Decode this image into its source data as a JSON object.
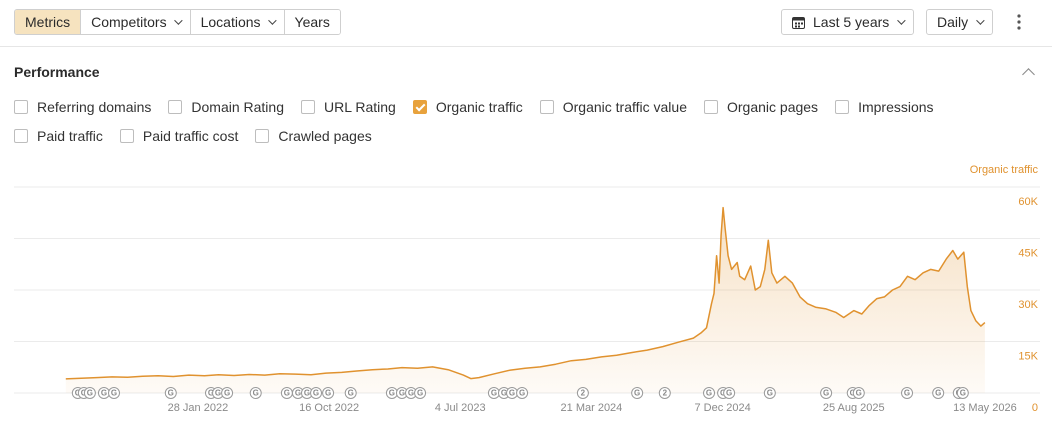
{
  "toolbar": {
    "tabs": [
      {
        "label": "Metrics",
        "selected": true,
        "dropdown": false
      },
      {
        "label": "Competitors",
        "selected": false,
        "dropdown": true
      },
      {
        "label": "Locations",
        "selected": false,
        "dropdown": true
      },
      {
        "label": "Years",
        "selected": false,
        "dropdown": false
      }
    ],
    "period": "Last 5 years",
    "interval": "Daily"
  },
  "section": {
    "title": "Performance",
    "metrics": [
      {
        "label": "Referring domains",
        "checked": false
      },
      {
        "label": "Domain Rating",
        "checked": false
      },
      {
        "label": "URL Rating",
        "checked": false
      },
      {
        "label": "Organic traffic",
        "checked": true
      },
      {
        "label": "Organic traffic value",
        "checked": false
      },
      {
        "label": "Organic pages",
        "checked": false
      },
      {
        "label": "Impressions",
        "checked": false
      },
      {
        "label": "Paid traffic",
        "checked": false
      },
      {
        "label": "Paid traffic cost",
        "checked": false
      },
      {
        "label": "Crawled pages",
        "checked": false
      }
    ]
  },
  "chart_data": {
    "type": "area",
    "y_label": "Organic traffic",
    "x": [
      "2021-05-10",
      "2021-06-10",
      "2021-07-10",
      "2021-08-10",
      "2021-09-10",
      "2021-10-10",
      "2021-11-10",
      "2021-12-10",
      "2022-01-10",
      "2022-02-10",
      "2022-03-10",
      "2022-04-10",
      "2022-05-10",
      "2022-06-10",
      "2022-07-10",
      "2022-08-10",
      "2022-09-10",
      "2022-10-10",
      "2022-11-10",
      "2022-12-10",
      "2023-01-10",
      "2023-02-10",
      "2023-03-10",
      "2023-04-10",
      "2023-05-10",
      "2023-06-10",
      "2023-07-10",
      "2023-07-25",
      "2023-08-10",
      "2023-09-10",
      "2023-10-10",
      "2023-11-10",
      "2023-12-10",
      "2024-01-10",
      "2024-02-10",
      "2024-03-10",
      "2024-04-10",
      "2024-05-10",
      "2024-06-10",
      "2024-07-10",
      "2024-08-10",
      "2024-09-10",
      "2024-10-10",
      "2024-10-25",
      "2024-11-05",
      "2024-11-15",
      "2024-11-20",
      "2024-11-25",
      "2024-11-30",
      "2024-12-04",
      "2024-12-08",
      "2024-12-12",
      "2024-12-18",
      "2024-12-25",
      "2025-01-05",
      "2025-01-10",
      "2025-01-20",
      "2025-02-01",
      "2025-02-10",
      "2025-02-20",
      "2025-03-01",
      "2025-03-08",
      "2025-03-15",
      "2025-03-25",
      "2025-04-10",
      "2025-04-25",
      "2025-05-10",
      "2025-05-25",
      "2025-06-10",
      "2025-07-01",
      "2025-07-20",
      "2025-08-05",
      "2025-08-25",
      "2025-09-10",
      "2025-09-25",
      "2025-10-10",
      "2025-10-25",
      "2025-11-10",
      "2025-11-25",
      "2025-12-10",
      "2025-12-25",
      "2026-01-10",
      "2026-01-25",
      "2026-02-10",
      "2026-02-25",
      "2026-03-10",
      "2026-03-20",
      "2026-04-01",
      "2026-04-08",
      "2026-04-15",
      "2026-04-25",
      "2026-05-05",
      "2026-05-13"
    ],
    "series": [
      {
        "name": "Organic traffic",
        "color": "#e0922f",
        "values": [
          4100,
          4300,
          4500,
          4700,
          4600,
          4900,
          5000,
          4800,
          5200,
          5000,
          5300,
          5100,
          5400,
          5200,
          5600,
          5500,
          5300,
          5800,
          6000,
          6400,
          6800,
          7000,
          7400,
          7200,
          7600,
          6800,
          5200,
          4200,
          4500,
          5600,
          6600,
          7200,
          7600,
          8400,
          9400,
          9800,
          10500,
          11000,
          11800,
          12500,
          13500,
          14800,
          16000,
          17500,
          19000,
          26000,
          29000,
          40000,
          32000,
          46000,
          54000,
          48000,
          40000,
          36000,
          38000,
          34000,
          33000,
          37000,
          30000,
          31000,
          36000,
          44500,
          35000,
          32000,
          34000,
          32000,
          28000,
          26000,
          25000,
          24500,
          23500,
          22000,
          24000,
          23000,
          25500,
          27500,
          28000,
          30000,
          31000,
          34000,
          33000,
          35000,
          36000,
          35500,
          39000,
          41500,
          39000,
          41000,
          31000,
          24000,
          21000,
          19500,
          20500
        ]
      }
    ],
    "xlim": [
      "2021-01-27",
      "2026-06-12"
    ],
    "xticks": [
      {
        "value": "2022-01-28",
        "label": "28 Jan 2022"
      },
      {
        "value": "2022-10-16",
        "label": "16 Oct 2022"
      },
      {
        "value": "2023-07-04",
        "label": "4 Jul 2023"
      },
      {
        "value": "2024-03-21",
        "label": "21 Mar 2024"
      },
      {
        "value": "2024-12-07",
        "label": "7 Dec 2024"
      },
      {
        "value": "2025-08-25",
        "label": "25 Aug 2025"
      },
      {
        "value": "2026-05-13",
        "label": "13 May 2026"
      }
    ],
    "ylim": [
      0,
      60000
    ],
    "yticks": [
      0,
      {
        "value": 15000,
        "label": "15K"
      },
      {
        "value": 30000,
        "label": "30K"
      },
      {
        "value": 45000,
        "label": "45K"
      },
      {
        "value": 60000,
        "label": "60K"
      }
    ],
    "grid": true,
    "annotations": [
      {
        "x": "2021-06-03",
        "label": "G"
      },
      {
        "x": "2021-06-15",
        "label": "G"
      },
      {
        "x": "2021-06-27",
        "label": "G"
      },
      {
        "x": "2021-07-25",
        "label": "G"
      },
      {
        "x": "2021-08-14",
        "label": "G"
      },
      {
        "x": "2021-12-05",
        "label": "G"
      },
      {
        "x": "2022-02-23",
        "label": "G"
      },
      {
        "x": "2022-03-09",
        "label": "G"
      },
      {
        "x": "2022-03-27",
        "label": "G"
      },
      {
        "x": "2022-05-23",
        "label": "G"
      },
      {
        "x": "2022-07-24",
        "label": "G"
      },
      {
        "x": "2022-08-15",
        "label": "G"
      },
      {
        "x": "2022-09-02",
        "label": "G"
      },
      {
        "x": "2022-09-20",
        "label": "G"
      },
      {
        "x": "2022-10-14",
        "label": "G"
      },
      {
        "x": "2022-11-28",
        "label": "G"
      },
      {
        "x": "2023-02-18",
        "label": "G"
      },
      {
        "x": "2023-03-10",
        "label": "G"
      },
      {
        "x": "2023-03-28",
        "label": "G"
      },
      {
        "x": "2023-04-15",
        "label": "G"
      },
      {
        "x": "2023-09-09",
        "label": "G"
      },
      {
        "x": "2023-09-29",
        "label": "G"
      },
      {
        "x": "2023-10-15",
        "label": "G"
      },
      {
        "x": "2023-11-04",
        "label": "G"
      },
      {
        "x": "2024-03-04",
        "label": "2"
      },
      {
        "x": "2024-06-20",
        "label": "G"
      },
      {
        "x": "2024-08-14",
        "label": "2"
      },
      {
        "x": "2024-11-10",
        "label": "G"
      },
      {
        "x": "2024-12-08",
        "label": "G"
      },
      {
        "x": "2024-12-20",
        "label": "G"
      },
      {
        "x": "2025-03-11",
        "label": "G"
      },
      {
        "x": "2025-07-01",
        "label": "G"
      },
      {
        "x": "2025-08-23",
        "label": "G"
      },
      {
        "x": "2025-09-04",
        "label": "G"
      },
      {
        "x": "2025-12-09",
        "label": "G"
      },
      {
        "x": "2026-02-09",
        "label": "G"
      },
      {
        "x": "2026-03-22",
        "label": "G"
      },
      {
        "x": "2026-03-30",
        "label": "G"
      }
    ]
  }
}
